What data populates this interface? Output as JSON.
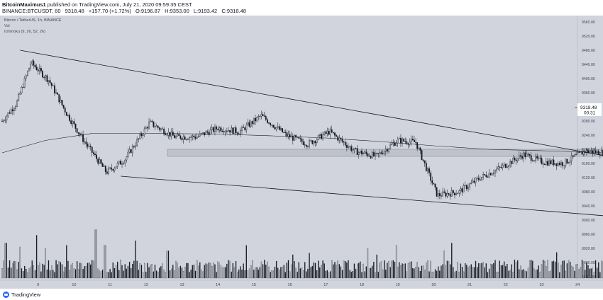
{
  "header": {
    "author": "BitcoinMaximus1",
    "published_text": "published on TradingView.com, July 21, 2020 09:59:35 CEST",
    "symbol": "BINANCE:BTCUSDT, 60",
    "last": "9318.48",
    "change": "+157.70 (+1.72%)",
    "ohlc": [
      {
        "k": "O:",
        "v": "9196.87"
      },
      {
        "k": "H:",
        "v": "9353.00"
      },
      {
        "k": "L:",
        "v": "9193.42"
      },
      {
        "k": "C:",
        "v": "9318.48"
      }
    ]
  },
  "legend": {
    "line1": "Bitcoin / TetherUS, 1h, BINANCE",
    "line2": "Vol",
    "line3": "Ichimoku (9, 26, 52, 26)"
  },
  "price_label": {
    "value": "9318.48",
    "countdown": "00:31"
  },
  "footer": {
    "brand": "TradingView"
  },
  "colors": {
    "background": "#d1d4dc",
    "candle": "#131722",
    "volume_bar": "#131722",
    "last_volume_bar": "#ffffff",
    "box_fill": "#bfc2ca",
    "box_stroke": "#8a8f98",
    "trendline": "#131722"
  },
  "chart_data": {
    "type": "candlestick",
    "y_ticks": [
      "9560.00",
      "9520.00",
      "9480.00",
      "9440.00",
      "9400.00",
      "9360.00",
      "9320.00",
      "9280.00",
      "9240.00",
      "9200.00",
      "9160.00",
      "9120.00",
      "9080.00",
      "9040.00",
      "9000.00",
      "8960.00",
      "8920.00",
      "8880.00",
      "8840.00"
    ],
    "y_ticks_upper": [
      "9560.00",
      "9520.00",
      "9480.00",
      "9440.00",
      "9400.00",
      "9360.00",
      "9320.00",
      "9280.00",
      "9240.00",
      "9200.00",
      "9160.00",
      "9120.00",
      "9080.00",
      "9040.00",
      "9000.00",
      "8960.00"
    ],
    "y_ticks_lower": [
      "8920.00",
      "8880.00",
      "8840.00"
    ],
    "x_ticks": [
      "9",
      "10",
      "11",
      "12",
      "13",
      "14",
      "15",
      "16",
      "17",
      "18",
      "19",
      "20",
      "21",
      "22",
      "23",
      "24"
    ],
    "ylim": [
      8830,
      9578
    ],
    "price_path": [
      [
        0,
        9280
      ],
      [
        0.4,
        9330
      ],
      [
        0.8,
        9445
      ],
      [
        1.3,
        9395
      ],
      [
        1.8,
        9300
      ],
      [
        2.3,
        9220
      ],
      [
        2.9,
        9135
      ],
      [
        3.4,
        9170
      ],
      [
        4.1,
        9275
      ],
      [
        4.8,
        9235
      ],
      [
        5.4,
        9235
      ],
      [
        6,
        9260
      ],
      [
        6.6,
        9250
      ],
      [
        7.2,
        9295
      ],
      [
        7.9,
        9240
      ],
      [
        8.5,
        9215
      ],
      [
        9.1,
        9250
      ],
      [
        9.8,
        9195
      ],
      [
        10.4,
        9180
      ],
      [
        11,
        9225
      ],
      [
        11.5,
        9220
      ],
      [
        12.1,
        9070
      ],
      [
        12.7,
        9080
      ],
      [
        13.3,
        9120
      ],
      [
        13.9,
        9150
      ],
      [
        14.5,
        9185
      ],
      [
        15,
        9165
      ],
      [
        15.6,
        9160
      ],
      [
        16.2,
        9195
      ],
      [
        16.8,
        9190
      ],
      [
        17.3,
        9165
      ],
      [
        17.8,
        9190
      ],
      [
        18.2,
        9175
      ],
      [
        18.6,
        9205
      ],
      [
        18.9,
        9180
      ],
      [
        19.25,
        9200
      ],
      [
        19.6,
        9200
      ],
      [
        19.85,
        9318
      ]
    ],
    "ma_line": [
      [
        0,
        9190
      ],
      [
        1.2,
        9225
      ],
      [
        2.5,
        9245
      ],
      [
        4,
        9245
      ],
      [
        6,
        9243
      ],
      [
        7.5,
        9238
      ],
      [
        9,
        9232
      ],
      [
        10.5,
        9222
      ],
      [
        12,
        9210
      ],
      [
        13.5,
        9200
      ],
      [
        15,
        9196
      ],
      [
        16.3,
        9192
      ],
      [
        17.4,
        9190
      ],
      [
        18.4,
        9193
      ],
      [
        19.3,
        9205
      ],
      [
        19.85,
        9212
      ]
    ],
    "resistance_box": {
      "x_from": 4.6,
      "x_to": 20.5,
      "y_low": 9180,
      "y_high": 9200
    },
    "trendlines": [
      {
        "name": "upper-trendline",
        "from": [
          0.5,
          9480
        ],
        "to": [
          21.1,
          9102
        ]
      },
      {
        "name": "lower-trendline",
        "from": [
          3.3,
          9124
        ],
        "to": [
          21.2,
          8975
        ]
      }
    ],
    "volume": {
      "spikes": [
        [
          0.1,
          0.45
        ],
        [
          0.5,
          0.4
        ],
        [
          0.95,
          0.55
        ],
        [
          1.2,
          0.38
        ],
        [
          1.8,
          0.42
        ],
        [
          2.6,
          0.62
        ],
        [
          2.85,
          0.42
        ],
        [
          3.7,
          0.48
        ],
        [
          4.6,
          0.35
        ],
        [
          6.8,
          0.42
        ],
        [
          8.1,
          0.3
        ],
        [
          8.55,
          0.32
        ],
        [
          10.15,
          0.38
        ],
        [
          10.4,
          0.3
        ],
        [
          10.95,
          0.42
        ],
        [
          12.3,
          0.35
        ],
        [
          12.5,
          0.45
        ],
        [
          15.4,
          0.33
        ],
        [
          16.85,
          0.25
        ],
        [
          17.1,
          0.3
        ],
        [
          18.4,
          0.22
        ],
        [
          19.1,
          0.3
        ],
        [
          19.85,
          0.78
        ]
      ],
      "base_level": 0.18
    }
  }
}
